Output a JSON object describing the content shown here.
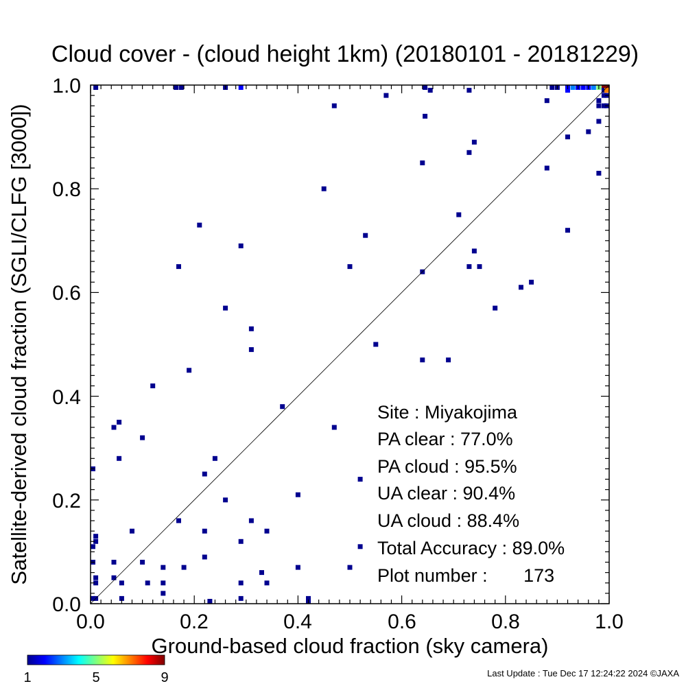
{
  "chart_data": {
    "type": "heatmap",
    "title": "Cloud cover - (cloud height 1km)  (20180101 - 20181229)",
    "xlabel": "Ground-based cloud fraction (sky camera)",
    "ylabel": "Satellite-derived cloud fraction (SGLI/CLFG [3000])",
    "xlim": [
      0.0,
      1.0
    ],
    "ylim": [
      0.0,
      1.0
    ],
    "xticks": [
      "0.0",
      "0.2",
      "0.4",
      "0.6",
      "0.8",
      "1.0"
    ],
    "yticks": [
      "0.0",
      "0.2",
      "0.4",
      "0.6",
      "0.8",
      "1.0"
    ],
    "grid": false,
    "reference_line": "1:1 diagonal",
    "colorbar": {
      "min": 1,
      "max": 9,
      "tick_labels": [
        "1",
        "5",
        "9"
      ],
      "colors": [
        "#00008f",
        "#0000ff",
        "#0080ff",
        "#00ffff",
        "#80ff80",
        "#ffff00",
        "#ff8000",
        "#ff0000",
        "#800000"
      ]
    },
    "points": [
      {
        "x": 0.01,
        "y": 1.0,
        "c": 1
      },
      {
        "x": 0.165,
        "y": 1.0,
        "c": 1
      },
      {
        "x": 0.175,
        "y": 1.0,
        "c": 1
      },
      {
        "x": 0.26,
        "y": 1.0,
        "c": 1
      },
      {
        "x": 0.29,
        "y": 1.0,
        "c": 2
      },
      {
        "x": 0.645,
        "y": 1.0,
        "c": 1
      },
      {
        "x": 0.655,
        "y": 0.99,
        "c": 1
      },
      {
        "x": 0.73,
        "y": 0.99,
        "c": 1
      },
      {
        "x": 0.57,
        "y": 0.98,
        "c": 1
      },
      {
        "x": 0.47,
        "y": 0.96,
        "c": 1
      },
      {
        "x": 0.645,
        "y": 0.94,
        "c": 1
      },
      {
        "x": 0.74,
        "y": 0.89,
        "c": 1
      },
      {
        "x": 0.73,
        "y": 0.87,
        "c": 1
      },
      {
        "x": 0.64,
        "y": 0.85,
        "c": 1
      },
      {
        "x": 0.45,
        "y": 0.8,
        "c": 1
      },
      {
        "x": 0.71,
        "y": 0.75,
        "c": 1
      },
      {
        "x": 0.21,
        "y": 0.73,
        "c": 1
      },
      {
        "x": 0.53,
        "y": 0.71,
        "c": 1
      },
      {
        "x": 0.29,
        "y": 0.69,
        "c": 1
      },
      {
        "x": 0.74,
        "y": 0.68,
        "c": 1
      },
      {
        "x": 0.17,
        "y": 0.65,
        "c": 1
      },
      {
        "x": 0.5,
        "y": 0.65,
        "c": 1
      },
      {
        "x": 0.73,
        "y": 0.65,
        "c": 1
      },
      {
        "x": 0.75,
        "y": 0.65,
        "c": 1
      },
      {
        "x": 0.64,
        "y": 0.64,
        "c": 1
      },
      {
        "x": 0.85,
        "y": 0.62,
        "c": 1
      },
      {
        "x": 0.83,
        "y": 0.61,
        "c": 1
      },
      {
        "x": 0.26,
        "y": 0.57,
        "c": 1
      },
      {
        "x": 0.78,
        "y": 0.57,
        "c": 1
      },
      {
        "x": 0.31,
        "y": 0.53,
        "c": 1
      },
      {
        "x": 0.55,
        "y": 0.5,
        "c": 1
      },
      {
        "x": 0.31,
        "y": 0.49,
        "c": 1
      },
      {
        "x": 0.64,
        "y": 0.47,
        "c": 1
      },
      {
        "x": 0.69,
        "y": 0.47,
        "c": 1
      },
      {
        "x": 0.19,
        "y": 0.45,
        "c": 1
      },
      {
        "x": 0.12,
        "y": 0.42,
        "c": 1
      },
      {
        "x": 0.37,
        "y": 0.38,
        "c": 1
      },
      {
        "x": 0.055,
        "y": 0.35,
        "c": 1
      },
      {
        "x": 0.045,
        "y": 0.34,
        "c": 1
      },
      {
        "x": 0.47,
        "y": 0.34,
        "c": 1
      },
      {
        "x": 0.1,
        "y": 0.32,
        "c": 1
      },
      {
        "x": 0.055,
        "y": 0.28,
        "c": 1
      },
      {
        "x": 0.24,
        "y": 0.28,
        "c": 1
      },
      {
        "x": 0.0,
        "y": 0.26,
        "c": 1
      },
      {
        "x": 0.22,
        "y": 0.25,
        "c": 1
      },
      {
        "x": 0.52,
        "y": 0.24,
        "c": 1
      },
      {
        "x": 0.4,
        "y": 0.21,
        "c": 1
      },
      {
        "x": 0.26,
        "y": 0.2,
        "c": 1
      },
      {
        "x": 0.17,
        "y": 0.16,
        "c": 1
      },
      {
        "x": 0.31,
        "y": 0.16,
        "c": 1
      },
      {
        "x": 0.08,
        "y": 0.14,
        "c": 1
      },
      {
        "x": 0.22,
        "y": 0.14,
        "c": 1
      },
      {
        "x": 0.34,
        "y": 0.14,
        "c": 1
      },
      {
        "x": 0.01,
        "y": 0.13,
        "c": 1
      },
      {
        "x": 0.01,
        "y": 0.12,
        "c": 1
      },
      {
        "x": 0.29,
        "y": 0.12,
        "c": 1
      },
      {
        "x": 0.0,
        "y": 0.11,
        "c": 1
      },
      {
        "x": 0.52,
        "y": 0.11,
        "c": 1
      },
      {
        "x": 0.22,
        "y": 0.09,
        "c": 1
      },
      {
        "x": 0.0,
        "y": 0.08,
        "c": 1
      },
      {
        "x": 0.045,
        "y": 0.08,
        "c": 1
      },
      {
        "x": 0.1,
        "y": 0.08,
        "c": 1
      },
      {
        "x": 0.14,
        "y": 0.07,
        "c": 1
      },
      {
        "x": 0.18,
        "y": 0.07,
        "c": 1
      },
      {
        "x": 0.4,
        "y": 0.07,
        "c": 1
      },
      {
        "x": 0.5,
        "y": 0.07,
        "c": 1
      },
      {
        "x": 0.33,
        "y": 0.06,
        "c": 1
      },
      {
        "x": 0.01,
        "y": 0.05,
        "c": 1
      },
      {
        "x": 0.045,
        "y": 0.05,
        "c": 1
      },
      {
        "x": 0.01,
        "y": 0.04,
        "c": 1
      },
      {
        "x": 0.06,
        "y": 0.04,
        "c": 1
      },
      {
        "x": 0.11,
        "y": 0.04,
        "c": 1
      },
      {
        "x": 0.14,
        "y": 0.04,
        "c": 1
      },
      {
        "x": 0.29,
        "y": 0.04,
        "c": 1
      },
      {
        "x": 0.34,
        "y": 0.04,
        "c": 1
      },
      {
        "x": 0.14,
        "y": 0.02,
        "c": 1
      },
      {
        "x": 0.0,
        "y": 0.01,
        "c": 1
      },
      {
        "x": 0.01,
        "y": 0.01,
        "c": 1
      },
      {
        "x": 0.06,
        "y": 0.01,
        "c": 1
      },
      {
        "x": 0.29,
        "y": 0.01,
        "c": 1
      },
      {
        "x": 0.42,
        "y": 0.01,
        "c": 1
      },
      {
        "x": 0.23,
        "y": 0.0,
        "c": 1
      },
      {
        "x": 0.42,
        "y": 0.0,
        "c": 1
      },
      {
        "x": 0.88,
        "y": 0.97,
        "c": 1
      },
      {
        "x": 0.96,
        "y": 0.91,
        "c": 1
      },
      {
        "x": 0.92,
        "y": 0.9,
        "c": 1
      },
      {
        "x": 0.98,
        "y": 0.93,
        "c": 1
      },
      {
        "x": 0.88,
        "y": 0.84,
        "c": 1
      },
      {
        "x": 0.98,
        "y": 0.83,
        "c": 1
      },
      {
        "x": 0.92,
        "y": 0.72,
        "c": 1
      },
      {
        "x": 0.98,
        "y": 0.97,
        "c": 1
      },
      {
        "x": 0.99,
        "y": 0.96,
        "c": 1
      },
      {
        "x": 1.0,
        "y": 0.96,
        "c": 1
      },
      {
        "x": 0.98,
        "y": 0.96,
        "c": 1
      },
      {
        "x": 0.89,
        "y": 1.0,
        "c": 1
      },
      {
        "x": 0.9,
        "y": 1.0,
        "c": 1
      },
      {
        "x": 0.92,
        "y": 1.0,
        "c": 2
      },
      {
        "x": 0.93,
        "y": 1.0,
        "c": 3
      },
      {
        "x": 0.94,
        "y": 1.0,
        "c": 2
      },
      {
        "x": 0.95,
        "y": 1.0,
        "c": 2
      },
      {
        "x": 0.96,
        "y": 1.0,
        "c": 2
      },
      {
        "x": 0.97,
        "y": 1.0,
        "c": 3
      },
      {
        "x": 0.92,
        "y": 0.99,
        "c": 2
      },
      {
        "x": 0.98,
        "y": 1.0,
        "c": 5
      },
      {
        "x": 0.99,
        "y": 1.0,
        "c": 9
      },
      {
        "x": 1.0,
        "y": 1.0,
        "c": 9
      },
      {
        "x": 0.99,
        "y": 0.99,
        "c": 1
      },
      {
        "x": 1.0,
        "y": 0.99,
        "c": 7
      },
      {
        "x": 0.99,
        "y": 0.98,
        "c": 1
      },
      {
        "x": 1.0,
        "y": 0.98,
        "c": 1
      }
    ]
  },
  "stats": {
    "site": "Site : Miyakojima",
    "pa_clear": "PA clear :  77.0%",
    "pa_cloud": "PA cloud :  95.5%",
    "ua_clear": "UA clear :  90.4%",
    "ua_cloud": "UA cloud :  88.4%",
    "total_accuracy": "Total Accuracy :  89.0%",
    "plot_number": "Plot number :       173"
  },
  "footer": {
    "last_update": "Last Update : Tue Dec 17 12:24:22 2024  ©JAXA"
  }
}
